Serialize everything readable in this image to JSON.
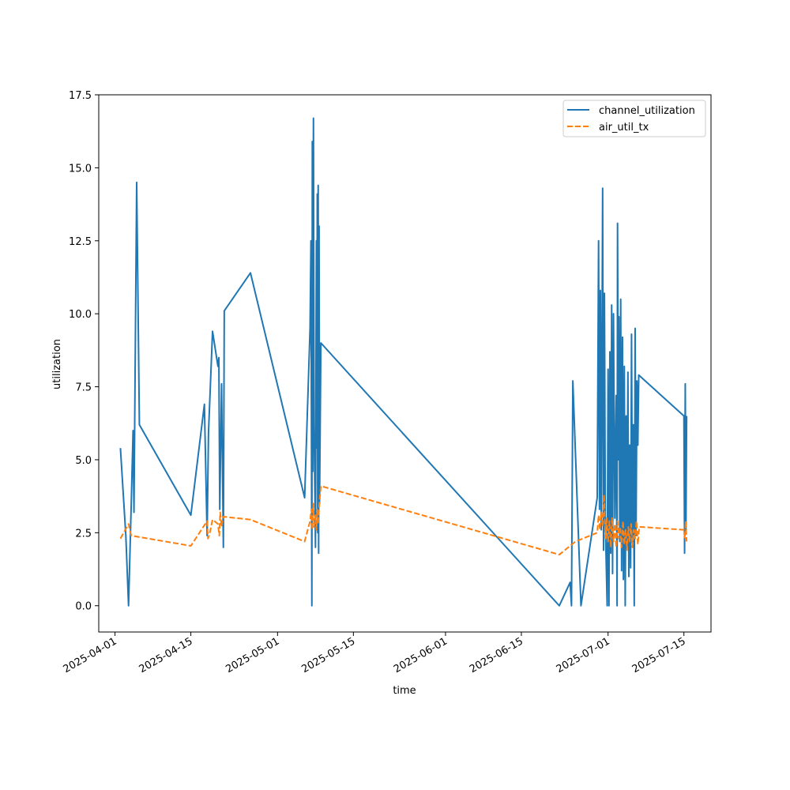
{
  "chart_data": {
    "type": "line",
    "title": "",
    "xlabel": "time",
    "ylabel": "utilization",
    "x_type": "date",
    "xlim": [
      "2025-03-29",
      "2025-07-20"
    ],
    "ylim": [
      -0.9,
      17.5
    ],
    "x_ticks": [
      "2025-04-01",
      "2025-04-15",
      "2025-05-01",
      "2025-05-15",
      "2025-06-01",
      "2025-06-15",
      "2025-07-01",
      "2025-07-15"
    ],
    "y_ticks": [
      0.0,
      2.5,
      5.0,
      7.5,
      10.0,
      12.5,
      15.0,
      17.5
    ],
    "y_tick_labels": [
      "0.0",
      "2.5",
      "5.0",
      "7.5",
      "10.0",
      "12.5",
      "15.0",
      "17.5"
    ],
    "grid": false,
    "legend_position": "top-right",
    "series": [
      {
        "name": "channel_utilization",
        "color": "#1f77b4",
        "dash": "solid",
        "points": [
          [
            "2025-04-02",
            5.4
          ],
          [
            "2025-04-03",
            2.4
          ],
          [
            "2025-04-03T12:00",
            0.0
          ],
          [
            "2025-04-04",
            3.5
          ],
          [
            "2025-04-04T08:00",
            6.0
          ],
          [
            "2025-04-04T12:00",
            3.2
          ],
          [
            "2025-04-05",
            14.5
          ],
          [
            "2025-04-05T12:00",
            6.2
          ],
          [
            "2025-04-15",
            3.1
          ],
          [
            "2025-04-17T12:00",
            6.9
          ],
          [
            "2025-04-18",
            2.4
          ],
          [
            "2025-04-18T06:00",
            5.9
          ],
          [
            "2025-04-19",
            9.4
          ],
          [
            "2025-04-20",
            8.2
          ],
          [
            "2025-04-20T04:00",
            8.5
          ],
          [
            "2025-04-20T08:00",
            3.3
          ],
          [
            "2025-04-20T16:00",
            7.6
          ],
          [
            "2025-04-21",
            2.0
          ],
          [
            "2025-04-21T04:00",
            10.1
          ],
          [
            "2025-04-26",
            11.4
          ],
          [
            "2025-05-06",
            3.7
          ],
          [
            "2025-05-07",
            9.5
          ],
          [
            "2025-05-07T04:00",
            12.5
          ],
          [
            "2025-05-07T08:00",
            0.0
          ],
          [
            "2025-05-07T10:00",
            15.9
          ],
          [
            "2025-05-07T12:00",
            4.6
          ],
          [
            "2025-05-07T15:00",
            16.7
          ],
          [
            "2025-05-07T18:00",
            6.2
          ],
          [
            "2025-05-08",
            2.0
          ],
          [
            "2025-05-08T04:00",
            12.5
          ],
          [
            "2025-05-08T06:00",
            5.4
          ],
          [
            "2025-05-08T08:00",
            14.1
          ],
          [
            "2025-05-08T10:00",
            2.5
          ],
          [
            "2025-05-08T12:00",
            14.4
          ],
          [
            "2025-05-08T14:00",
            1.8
          ],
          [
            "2025-05-08T16:00",
            13.0
          ],
          [
            "2025-05-08T18:00",
            3.5
          ],
          [
            "2025-05-09",
            9.0
          ],
          [
            "2025-06-22",
            0.0
          ],
          [
            "2025-06-24",
            0.8
          ],
          [
            "2025-06-24T06:00",
            0.0
          ],
          [
            "2025-06-24T12:00",
            7.7
          ],
          [
            "2025-06-26",
            0.0
          ],
          [
            "2025-06-29",
            3.7
          ],
          [
            "2025-06-29T06:00",
            12.5
          ],
          [
            "2025-06-29T10:00",
            3.3
          ],
          [
            "2025-06-29T14:00",
            10.8
          ],
          [
            "2025-06-29T18:00",
            2.6
          ],
          [
            "2025-06-30",
            14.3
          ],
          [
            "2025-06-30T04:00",
            1.9
          ],
          [
            "2025-06-30T08:00",
            10.7
          ],
          [
            "2025-06-30T12:00",
            2.8
          ],
          [
            "2025-06-30T20:00",
            0.0
          ],
          [
            "2025-07-01",
            8.1
          ],
          [
            "2025-07-01T04:00",
            0.0
          ],
          [
            "2025-07-01T08:00",
            8.7
          ],
          [
            "2025-07-01T12:00",
            1.8
          ],
          [
            "2025-07-01T16:00",
            10.3
          ],
          [
            "2025-07-01T20:00",
            1.1
          ],
          [
            "2025-07-02",
            10.0
          ],
          [
            "2025-07-02T06:00",
            3.0
          ],
          [
            "2025-07-02T12:00",
            7.2
          ],
          [
            "2025-07-02T16:00",
            0.0
          ],
          [
            "2025-07-02T18:00",
            13.1
          ],
          [
            "2025-07-02T22:00",
            5.0
          ],
          [
            "2025-07-03",
            9.9
          ],
          [
            "2025-07-03T04:00",
            2.2
          ],
          [
            "2025-07-03T08:00",
            10.5
          ],
          [
            "2025-07-03T12:00",
            1.2
          ],
          [
            "2025-07-03T16:00",
            9.2
          ],
          [
            "2025-07-03T20:00",
            0.9
          ],
          [
            "2025-07-04",
            8.2
          ],
          [
            "2025-07-04T04:00",
            0.0
          ],
          [
            "2025-07-04T08:00",
            6.5
          ],
          [
            "2025-07-04T12:00",
            2.0
          ],
          [
            "2025-07-04T16:00",
            8.0
          ],
          [
            "2025-07-04T20:00",
            1.0
          ],
          [
            "2025-07-05",
            5.5
          ],
          [
            "2025-07-05T04:00",
            1.3
          ],
          [
            "2025-07-05T08:00",
            9.3
          ],
          [
            "2025-07-05T12:00",
            2.2
          ],
          [
            "2025-07-05T16:00",
            6.2
          ],
          [
            "2025-07-05T20:00",
            0.0
          ],
          [
            "2025-07-06",
            9.5
          ],
          [
            "2025-07-06T04:00",
            2.4
          ],
          [
            "2025-07-06T08:00",
            7.7
          ],
          [
            "2025-07-06T12:00",
            5.5
          ],
          [
            "2025-07-06T16:00",
            7.9
          ],
          [
            "2025-07-15",
            6.5
          ],
          [
            "2025-07-15T03:00",
            1.8
          ],
          [
            "2025-07-15T06:00",
            7.6
          ],
          [
            "2025-07-15T09:00",
            2.5
          ],
          [
            "2025-07-15T12:00",
            6.5
          ]
        ]
      },
      {
        "name": "air_util_tx",
        "color": "#ff7f0e",
        "dash": "dashed",
        "points": [
          [
            "2025-04-02",
            2.3
          ],
          [
            "2025-04-03T12:00",
            2.8
          ],
          [
            "2025-04-04",
            2.4
          ],
          [
            "2025-04-15",
            2.05
          ],
          [
            "2025-04-18",
            2.9
          ],
          [
            "2025-04-18T04:00",
            2.3
          ],
          [
            "2025-04-18T12:00",
            2.5
          ],
          [
            "2025-04-19",
            2.95
          ],
          [
            "2025-04-20",
            2.8
          ],
          [
            "2025-04-20T06:00",
            2.4
          ],
          [
            "2025-04-20T10:00",
            3.2
          ],
          [
            "2025-04-20T16:00",
            2.7
          ],
          [
            "2025-04-21",
            3.05
          ],
          [
            "2025-04-26",
            2.95
          ],
          [
            "2025-05-06",
            2.2
          ],
          [
            "2025-05-07",
            2.9
          ],
          [
            "2025-05-07T06:00",
            3.3
          ],
          [
            "2025-05-07T10:00",
            2.6
          ],
          [
            "2025-05-07T14:00",
            3.5
          ],
          [
            "2025-05-07T18:00",
            2.7
          ],
          [
            "2025-05-08",
            3.1
          ],
          [
            "2025-05-08T04:00",
            2.6
          ],
          [
            "2025-05-08T08:00",
            3.3
          ],
          [
            "2025-05-08T12:00",
            2.8
          ],
          [
            "2025-05-08T16:00",
            3.4
          ],
          [
            "2025-05-09",
            4.1
          ],
          [
            "2025-06-22",
            1.75
          ],
          [
            "2025-06-25",
            2.2
          ],
          [
            "2025-06-29",
            2.5
          ],
          [
            "2025-06-29T06:00",
            3.1
          ],
          [
            "2025-06-29T12:00",
            2.6
          ],
          [
            "2025-06-29T18:00",
            3.2
          ],
          [
            "2025-06-30",
            2.7
          ],
          [
            "2025-06-30T06:00",
            3.8
          ],
          [
            "2025-06-30T12:00",
            2.3
          ],
          [
            "2025-06-30T18:00",
            3.0
          ],
          [
            "2025-07-01",
            2.2
          ],
          [
            "2025-07-01T06:00",
            2.9
          ],
          [
            "2025-07-01T12:00",
            2.0
          ],
          [
            "2025-07-01T18:00",
            3.0
          ],
          [
            "2025-07-02",
            2.2
          ],
          [
            "2025-07-02T06:00",
            2.8
          ],
          [
            "2025-07-02T12:00",
            2.0
          ],
          [
            "2025-07-02T18:00",
            2.9
          ],
          [
            "2025-07-03",
            2.3
          ],
          [
            "2025-07-03T06:00",
            2.7
          ],
          [
            "2025-07-03T12:00",
            2.0
          ],
          [
            "2025-07-03T18:00",
            2.9
          ],
          [
            "2025-07-04",
            2.1
          ],
          [
            "2025-07-04T06:00",
            2.6
          ],
          [
            "2025-07-04T12:00",
            1.9
          ],
          [
            "2025-07-04T18:00",
            2.7
          ],
          [
            "2025-07-05",
            2.2
          ],
          [
            "2025-07-05T06:00",
            2.8
          ],
          [
            "2025-07-05T12:00",
            2.0
          ],
          [
            "2025-07-05T18:00",
            2.6
          ],
          [
            "2025-07-06",
            2.3
          ],
          [
            "2025-07-06T06:00",
            2.9
          ],
          [
            "2025-07-06T12:00",
            2.1
          ],
          [
            "2025-07-06T18:00",
            2.7
          ],
          [
            "2025-07-07",
            2.7
          ],
          [
            "2025-07-15",
            2.6
          ],
          [
            "2025-07-15T04:00",
            2.3
          ],
          [
            "2025-07-15T08:00",
            2.9
          ],
          [
            "2025-07-15T12:00",
            2.2
          ]
        ]
      }
    ]
  }
}
